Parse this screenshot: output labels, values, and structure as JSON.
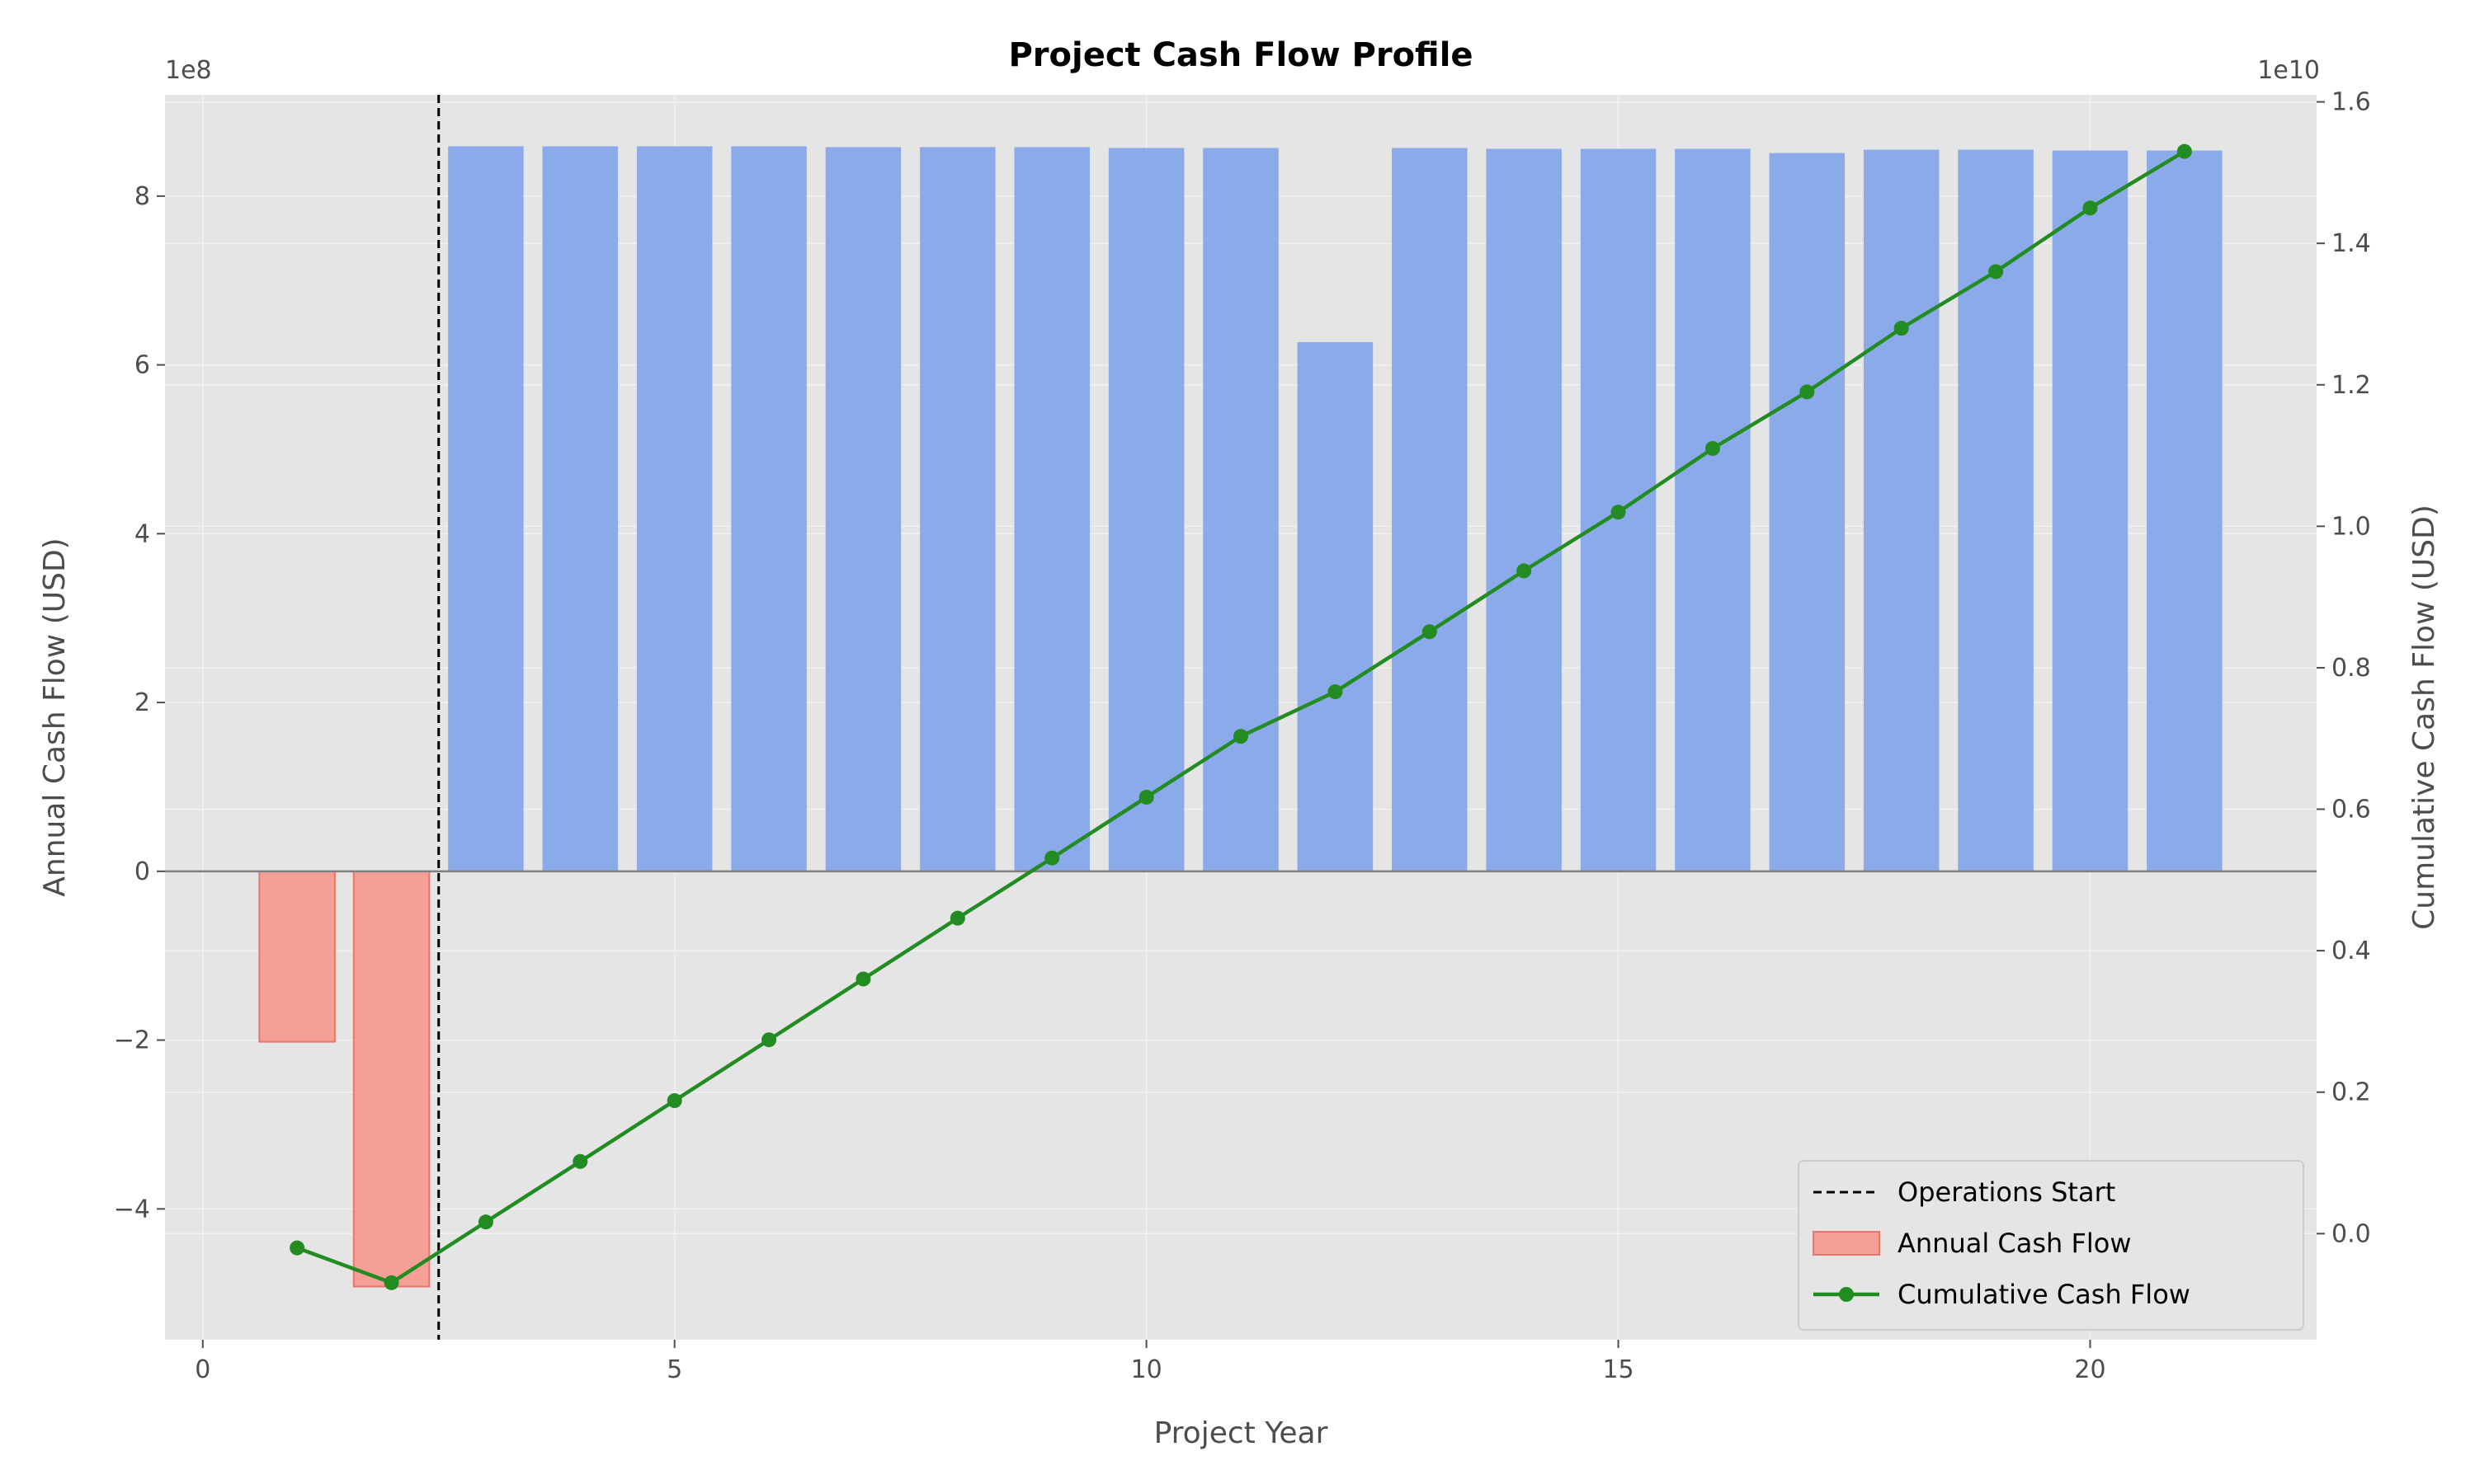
{
  "chart_data": {
    "type": "bar",
    "title": "Project Cash Flow Profile",
    "xlabel": "Project Year",
    "ylabel_left": "Annual Cash Flow (USD)",
    "ylabel_right": "Cumulative Cash Flow (USD)",
    "offset_left": "1e8",
    "offset_right": "1e10",
    "xlim": [
      -0.4,
      22.4
    ],
    "ylim_left": [
      -555000000.0,
      920000000.0
    ],
    "ylim_right": [
      -1500000000.0,
      16100000000.0
    ],
    "xticks": [
      0,
      5,
      10,
      15,
      20
    ],
    "xtick_labels": [
      "0",
      "5",
      "10",
      "15",
      "20"
    ],
    "yticks_left": [
      -400000000.0,
      -200000000.0,
      0,
      200000000.0,
      400000000.0,
      600000000.0,
      800000000.0
    ],
    "ytick_labels_left": [
      "−4",
      "−2",
      "0",
      "2",
      "4",
      "6",
      "8"
    ],
    "yticks_right": [
      0,
      2000000000.0,
      4000000000.0,
      6000000000.0,
      8000000000.0,
      10000000000.0,
      12000000000.0,
      14000000000.0,
      16000000000.0
    ],
    "ytick_labels_right": [
      "0.0",
      "0.2",
      "0.4",
      "0.6",
      "0.8",
      "1.0",
      "1.2",
      "1.4",
      "1.6"
    ],
    "grid": true,
    "legend_position": "lower-right",
    "operations_start_x": 2.5,
    "x": [
      1,
      2,
      3,
      4,
      5,
      6,
      7,
      8,
      9,
      10,
      11,
      12,
      13,
      14,
      15,
      16,
      17,
      18,
      19,
      20,
      21
    ],
    "series": [
      {
        "name": "Annual Cash Flow",
        "type": "bar",
        "axis": "left",
        "values": [
          -202000000.0,
          -492000000.0,
          859000000.0,
          859000000.0,
          859000000.0,
          859000000.0,
          858000000.0,
          858000000.0,
          858000000.0,
          857000000.0,
          857000000.0,
          627000000.0,
          857000000.0,
          856000000.0,
          856000000.0,
          856000000.0,
          851000000.0,
          855000000.0,
          855000000.0,
          854000000.0,
          854000000.0
        ]
      },
      {
        "name": "Cumulative Cash Flow",
        "type": "line",
        "axis": "right",
        "values": [
          -202000000.0,
          -694000000.0,
          165000000.0,
          1020000000.0,
          1880000000.0,
          2740000000.0,
          3600000000.0,
          4460000000.0,
          5310000000.0,
          6170000000.0,
          7030000000.0,
          7660000000.0,
          8510000000.0,
          9370000000.0,
          10200000000.0,
          11100000000.0,
          11900000000.0,
          12800000000.0,
          13600000000.0,
          14500000000.0,
          15300000000.0
        ]
      }
    ],
    "legend": [
      "Operations Start",
      "Annual Cash Flow",
      "Cumulative Cash Flow"
    ],
    "colors": {
      "positive_bar": "#8aaae9",
      "negative_bar": "#f4a096",
      "negative_bar_edge": "#e8766a",
      "line": "#228b22",
      "vline": "#000000",
      "plot_bg": "#e5e5e5",
      "grid": "#f2f2f2",
      "zero_line": "#7f7f7f"
    }
  }
}
